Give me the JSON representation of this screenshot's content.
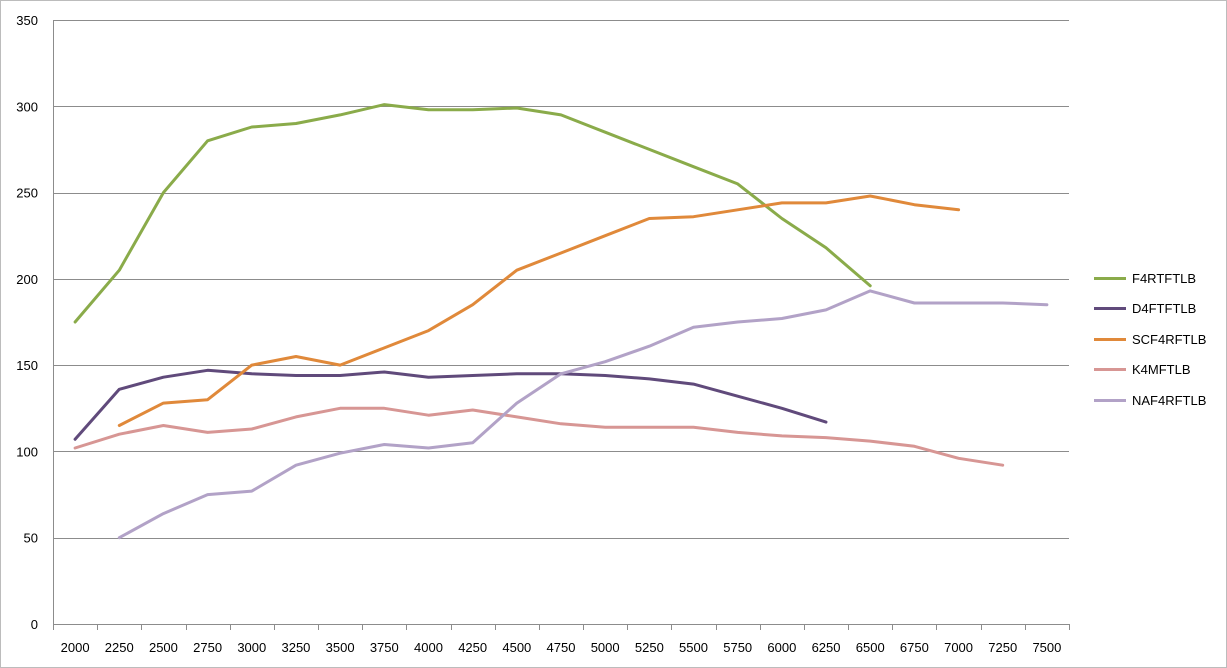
{
  "chart_data": {
    "type": "line",
    "title": "",
    "xlabel": "",
    "ylabel": "",
    "x": [
      2000,
      2250,
      2500,
      2750,
      3000,
      3250,
      3500,
      3750,
      4000,
      4250,
      4500,
      4750,
      5000,
      5250,
      5500,
      5750,
      6000,
      6250,
      6500,
      6750,
      7000,
      7250,
      7500
    ],
    "ylim": [
      0,
      350
    ],
    "yticks": [
      0,
      50,
      100,
      150,
      200,
      250,
      300,
      350
    ],
    "grid": "horizontal",
    "legend_position": "right",
    "series": [
      {
        "name": "F4RTFTLB",
        "color": "#8aab4a",
        "values": [
          175,
          205,
          250,
          280,
          288,
          290,
          295,
          301,
          298,
          298,
          299,
          295,
          285,
          275,
          265,
          255,
          235,
          218,
          196,
          null,
          null,
          null,
          null
        ]
      },
      {
        "name": "D4FTFTLB",
        "color": "#604a7b",
        "values": [
          107,
          136,
          143,
          147,
          145,
          144,
          144,
          146,
          143,
          144,
          145,
          145,
          144,
          142,
          139,
          132,
          125,
          117,
          null,
          null,
          null,
          null,
          null
        ]
      },
      {
        "name": "SCF4RFTLB",
        "color": "#e0893a",
        "values": [
          null,
          115,
          128,
          130,
          150,
          155,
          150,
          160,
          170,
          185,
          205,
          215,
          225,
          235,
          236,
          240,
          244,
          244,
          248,
          243,
          240,
          null,
          null
        ]
      },
      {
        "name": "K4MFTLB",
        "color": "#d79694",
        "values": [
          102,
          110,
          115,
          111,
          113,
          120,
          125,
          125,
          121,
          124,
          120,
          116,
          114,
          114,
          114,
          111,
          109,
          108,
          106,
          103,
          96,
          92,
          null
        ]
      },
      {
        "name": "NAF4RFTLB",
        "color": "#b2a2c7",
        "values": [
          null,
          50,
          64,
          75,
          77,
          92,
          99,
          104,
          102,
          105,
          128,
          145,
          152,
          161,
          172,
          175,
          177,
          182,
          193,
          186,
          186,
          186,
          185
        ]
      }
    ]
  }
}
